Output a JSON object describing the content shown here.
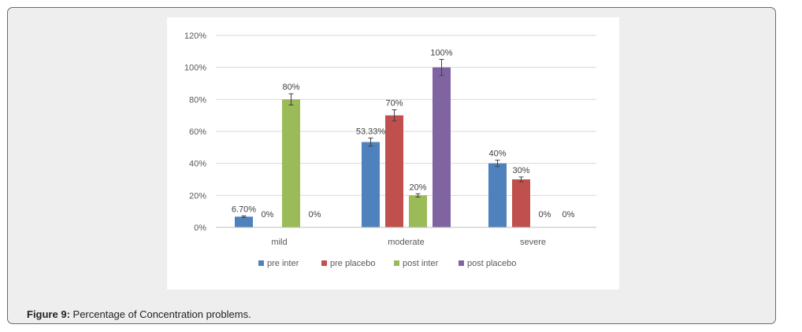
{
  "figure": {
    "label": "Figure 9:",
    "text": " Percentage of Concentration problems."
  },
  "chart_data": {
    "type": "bar",
    "categories": [
      "mild",
      "moderate",
      "severe"
    ],
    "series": [
      {
        "name": "pre inter",
        "color": "#4f81bd",
        "values": [
          6.7,
          53.33,
          40
        ],
        "labels": [
          "6.70%",
          "53.33%",
          "40%"
        ],
        "errors": [
          0.5,
          2.5,
          2
        ]
      },
      {
        "name": "pre placebo",
        "color": "#c0504d",
        "values": [
          0,
          70,
          30
        ],
        "labels": [
          "0%",
          "70%",
          "30%"
        ],
        "errors": [
          0,
          3.5,
          1.5
        ]
      },
      {
        "name": "post inter",
        "color": "#9bbb59",
        "values": [
          80,
          20,
          0
        ],
        "labels": [
          "80%",
          "20%",
          "0%"
        ],
        "errors": [
          3.5,
          1,
          0
        ]
      },
      {
        "name": "post placebo",
        "color": "#8064a2",
        "values": [
          0,
          100,
          0
        ],
        "labels": [
          "0%",
          "100%",
          "0%"
        ],
        "errors": [
          0,
          5,
          0
        ]
      }
    ],
    "ylim": [
      0,
      120
    ],
    "yticks": [
      "0%",
      "20%",
      "40%",
      "60%",
      "80%",
      "100%",
      "120%"
    ],
    "ytick_values": [
      0,
      20,
      40,
      60,
      80,
      100,
      120
    ],
    "grid": true,
    "legend": "bottom"
  }
}
